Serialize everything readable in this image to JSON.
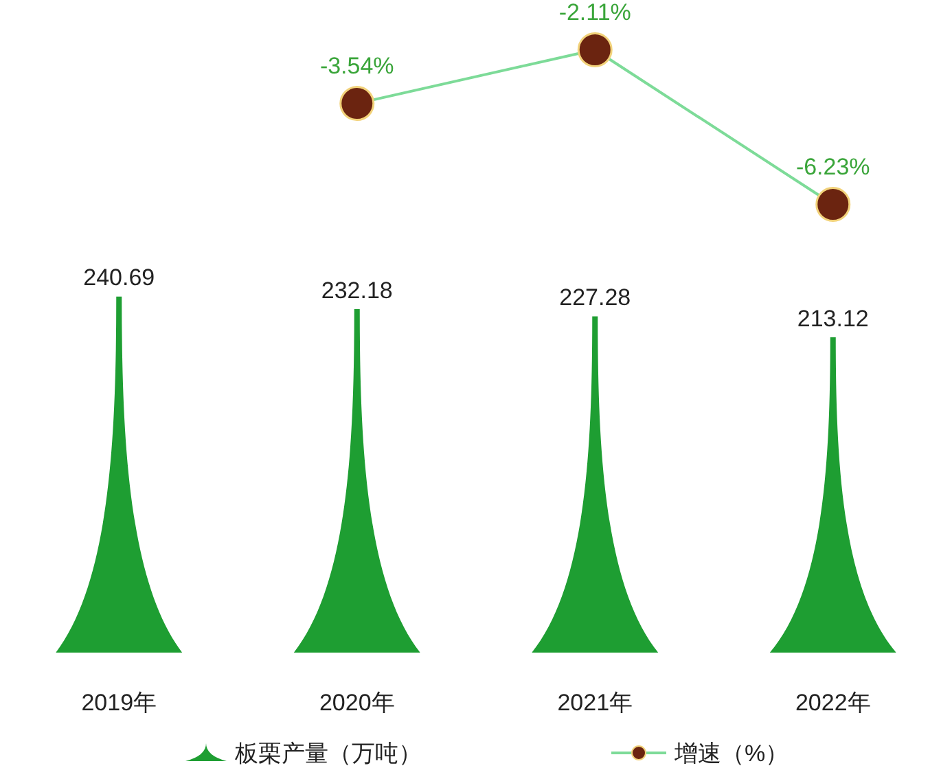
{
  "chart_data": [
    {
      "type": "line",
      "categories": [
        null,
        null,
        null,
        null
      ],
      "series": [
        {
          "name": "增速（%）",
          "color": "#7ddb98",
          "marker": "circle",
          "values": [
            null,
            -3.54,
            -2.11,
            -6.23
          ],
          "value_labels": [
            null,
            "-3.54%",
            "-2.11%",
            "-6.23%"
          ]
        }
      ],
      "tick_labels": false,
      "legend": "bottom right"
    },
    {
      "type": "bar",
      "categories": [
        "2019年",
        "2020年",
        "2021年",
        "2022年"
      ],
      "series": [
        {
          "name": "板栗产量（万吨）",
          "color": "#1e9e32",
          "values": [
            240.69,
            232.18,
            227.28,
            213.12
          ],
          "value_labels": [
            "240.69",
            "232.18",
            "227.28",
            "213.12"
          ]
        }
      ],
      "tick_labels": "x",
      "legend": "bottom left"
    }
  ]
}
